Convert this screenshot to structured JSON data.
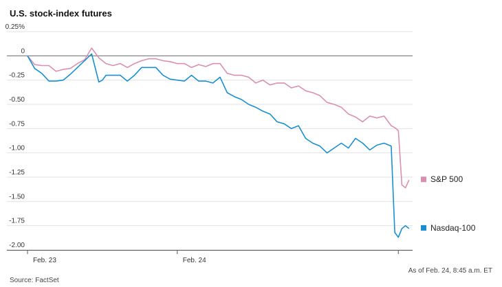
{
  "chart_data": {
    "type": "line",
    "title": "U.S. stock-index futures",
    "xlabel": "",
    "ylabel": "",
    "ylim": [
      -2.0,
      0.25
    ],
    "y_ticks": [
      {
        "value": 0.25,
        "label": "0.25%"
      },
      {
        "value": 0,
        "label": "0"
      },
      {
        "value": -0.25,
        "label": "-0.25"
      },
      {
        "value": -0.5,
        "label": "-0.50"
      },
      {
        "value": -0.75,
        "label": "-0.75"
      },
      {
        "value": -1.0,
        "label": "-1.00"
      },
      {
        "value": -1.25,
        "label": "-1.25"
      },
      {
        "value": -1.5,
        "label": "-1.50"
      },
      {
        "value": -1.75,
        "label": "-1.75"
      },
      {
        "value": -2.0,
        "label": "-2.00"
      }
    ],
    "x_ticks": [
      {
        "value": 0,
        "label": "Feb. 23"
      },
      {
        "value": 42,
        "label": "Feb. 24"
      },
      {
        "value": 104,
        "label": ""
      }
    ],
    "xlim": [
      0,
      108
    ],
    "grid": true,
    "legend": "right",
    "series": [
      {
        "name": "S&P 500",
        "color": "#d98fb0",
        "x": [
          0,
          2,
          4,
          6,
          8,
          10,
          12,
          14,
          16,
          18,
          20,
          21,
          22,
          24,
          26,
          28,
          30,
          32,
          34,
          36,
          38,
          40,
          42,
          44,
          46,
          48,
          50,
          52,
          54,
          56,
          58,
          60,
          62,
          64,
          66,
          68,
          70,
          72,
          74,
          76,
          78,
          80,
          82,
          84,
          86,
          88,
          90,
          92,
          94,
          96,
          98,
          100,
          102,
          103,
          104,
          105,
          106,
          107
        ],
        "values": [
          0.0,
          -0.09,
          -0.1,
          -0.1,
          -0.16,
          -0.14,
          -0.13,
          -0.08,
          -0.04,
          0.08,
          -0.02,
          -0.05,
          -0.08,
          -0.1,
          -0.08,
          -0.12,
          -0.08,
          -0.05,
          -0.03,
          -0.03,
          -0.05,
          -0.06,
          -0.08,
          -0.08,
          -0.12,
          -0.09,
          -0.11,
          -0.08,
          -0.08,
          -0.18,
          -0.2,
          -0.2,
          -0.22,
          -0.28,
          -0.25,
          -0.3,
          -0.28,
          -0.28,
          -0.33,
          -0.31,
          -0.36,
          -0.38,
          -0.41,
          -0.48,
          -0.5,
          -0.53,
          -0.6,
          -0.63,
          -0.68,
          -0.62,
          -0.64,
          -0.62,
          -0.72,
          -0.74,
          -0.77,
          -1.33,
          -1.36,
          -1.28
        ]
      },
      {
        "name": "Nasdaq-100",
        "color": "#1a8fcf",
        "x": [
          0,
          2,
          4,
          6,
          8,
          10,
          12,
          14,
          16,
          18,
          20,
          21,
          22,
          24,
          26,
          28,
          30,
          32,
          34,
          36,
          38,
          40,
          42,
          44,
          46,
          48,
          50,
          52,
          54,
          56,
          58,
          60,
          62,
          64,
          66,
          68,
          70,
          72,
          74,
          76,
          78,
          80,
          82,
          84,
          86,
          88,
          90,
          92,
          94,
          96,
          98,
          100,
          102,
          103,
          104,
          105,
          106,
          107
        ],
        "values": [
          0.0,
          -0.13,
          -0.18,
          -0.26,
          -0.26,
          -0.25,
          -0.19,
          -0.12,
          -0.05,
          0.02,
          -0.27,
          -0.25,
          -0.2,
          -0.2,
          -0.2,
          -0.26,
          -0.2,
          -0.12,
          -0.12,
          -0.12,
          -0.2,
          -0.24,
          -0.25,
          -0.26,
          -0.2,
          -0.26,
          -0.26,
          -0.28,
          -0.22,
          -0.38,
          -0.42,
          -0.45,
          -0.5,
          -0.53,
          -0.57,
          -0.6,
          -0.68,
          -0.7,
          -0.75,
          -0.72,
          -0.85,
          -0.9,
          -0.93,
          -1.0,
          -0.95,
          -0.9,
          -0.95,
          -0.85,
          -0.9,
          -0.97,
          -0.92,
          -0.9,
          -0.93,
          -1.82,
          -1.87,
          -1.78,
          -1.75,
          -1.78
        ]
      }
    ],
    "note": "As of Feb. 24, 8:45 a.m. ET",
    "source": "Source: FactSet"
  }
}
